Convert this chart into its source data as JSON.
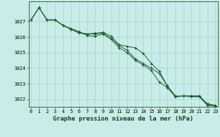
{
  "title": "Graphe pression niveau de la mer (hPa)",
  "background_color": "#c8ece8",
  "plot_bg_color": "#c8ece8",
  "grid_color": "#aacfcc",
  "line_color": "#1a5c2a",
  "marker_color": "#1a5c2a",
  "x_values": [
    0,
    1,
    2,
    3,
    4,
    5,
    6,
    7,
    8,
    9,
    10,
    11,
    12,
    13,
    14,
    15,
    16,
    17,
    18,
    19,
    20,
    21,
    22,
    23
  ],
  "series": [
    [
      1027.1,
      1027.9,
      1027.1,
      1027.1,
      1026.75,
      1026.55,
      1026.35,
      1026.1,
      1026.05,
      1026.2,
      1025.85,
      1025.3,
      1025.0,
      1024.5,
      1024.2,
      1023.85,
      1023.1,
      1022.75,
      1022.15,
      1022.2,
      1022.15,
      1022.15,
      1021.6,
      1021.55
    ],
    [
      1027.1,
      1027.9,
      1027.1,
      1027.1,
      1026.75,
      1026.5,
      1026.25,
      1026.2,
      1026.25,
      1026.3,
      1026.05,
      1025.5,
      1025.4,
      1025.3,
      1024.95,
      1024.3,
      1023.8,
      1022.85,
      1022.15,
      1022.2,
      1022.2,
      1022.2,
      1021.7,
      1021.6
    ],
    [
      1027.1,
      1027.9,
      1027.1,
      1027.1,
      1026.75,
      1026.5,
      1026.3,
      1026.2,
      1026.2,
      1026.25,
      1025.9,
      1025.45,
      1025.15,
      1024.6,
      1024.3,
      1024.0,
      1023.65,
      1022.85,
      1022.2,
      1022.2,
      1022.2,
      1022.2,
      1021.65,
      1021.55
    ]
  ],
  "ylim": [
    1021.5,
    1028.3
  ],
  "yticks": [
    1022,
    1023,
    1024,
    1025,
    1026,
    1027
  ],
  "xlim": [
    -0.3,
    23.3
  ],
  "xticks": [
    0,
    1,
    2,
    3,
    4,
    5,
    6,
    7,
    8,
    9,
    10,
    11,
    12,
    13,
    14,
    15,
    16,
    17,
    18,
    19,
    20,
    21,
    22,
    23
  ],
  "title_fontsize": 6.5,
  "tick_fontsize": 5.0
}
